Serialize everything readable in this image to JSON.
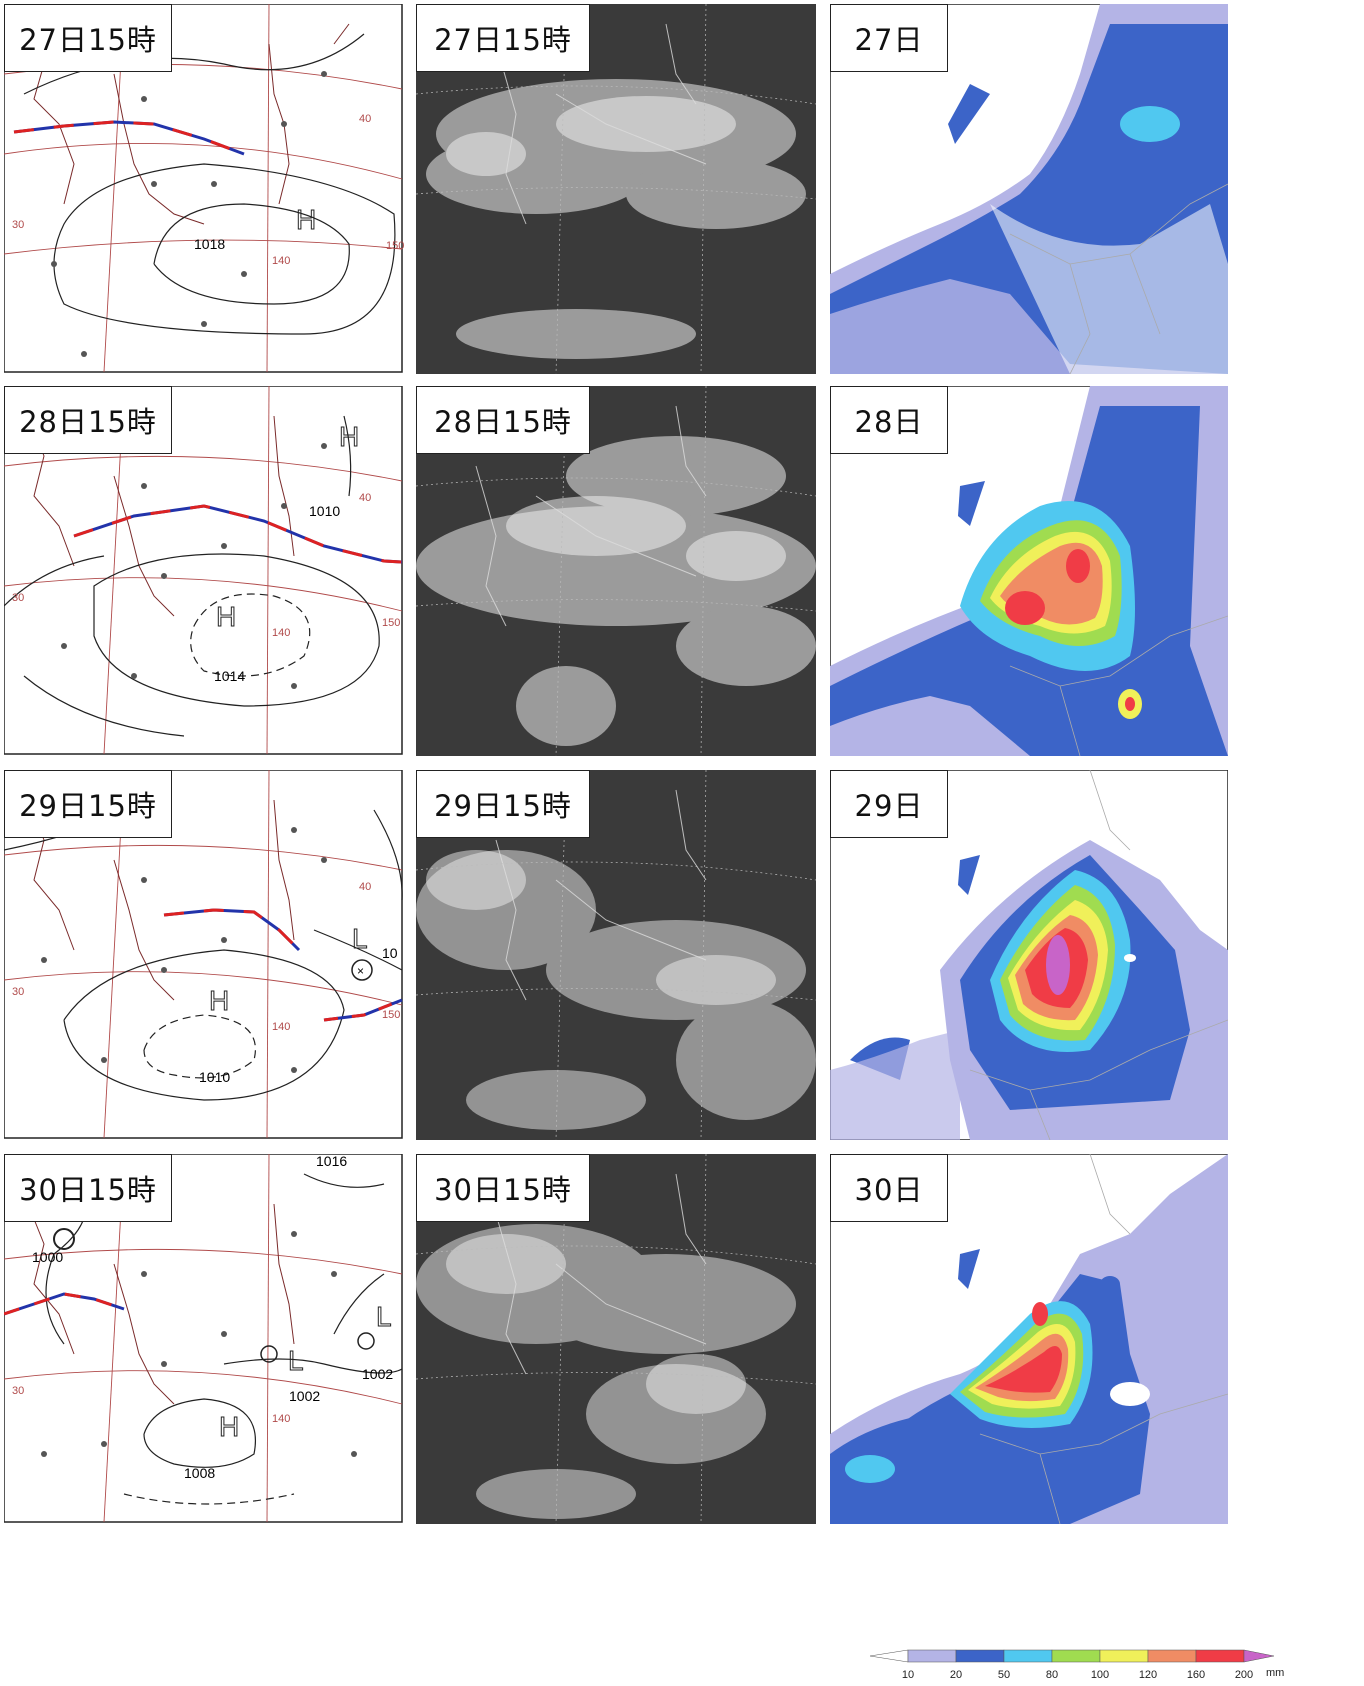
{
  "rows": [
    {
      "weather_label": "27日15時",
      "satellite_label": "27日15時",
      "rain_label": "27日",
      "isobars": [
        "1018"
      ],
      "highs": [
        "H"
      ],
      "lows": []
    },
    {
      "weather_label": "28日15時",
      "satellite_label": "28日15時",
      "rain_label": "28日",
      "isobars": [
        "1010",
        "1014"
      ],
      "highs": [
        "H",
        "H"
      ],
      "lows": []
    },
    {
      "weather_label": "29日15時",
      "satellite_label": "29日15時",
      "rain_label": "29日",
      "isobars": [
        "1010",
        "10"
      ],
      "highs": [
        "H"
      ],
      "lows": [
        "L"
      ]
    },
    {
      "weather_label": "30日15時",
      "satellite_label": "30日15時",
      "rain_label": "30日",
      "isobars": [
        "1000",
        "1002",
        "1002",
        "1008",
        "1016"
      ],
      "highs": [
        "H"
      ],
      "lows": [
        "L",
        "L"
      ]
    }
  ],
  "grid_labels": {
    "lat": [
      "40",
      "30"
    ],
    "lon": [
      "140",
      "150"
    ]
  },
  "legend": {
    "ticks": [
      "10",
      "20",
      "50",
      "80",
      "100",
      "120",
      "160",
      "200"
    ],
    "unit": "mm",
    "colors": [
      "#ffffff",
      "#b4b4e6",
      "#3c64c8",
      "#50c8f0",
      "#a0dc50",
      "#f0f05a",
      "#f08c64",
      "#f03c46",
      "#c864c8"
    ]
  }
}
